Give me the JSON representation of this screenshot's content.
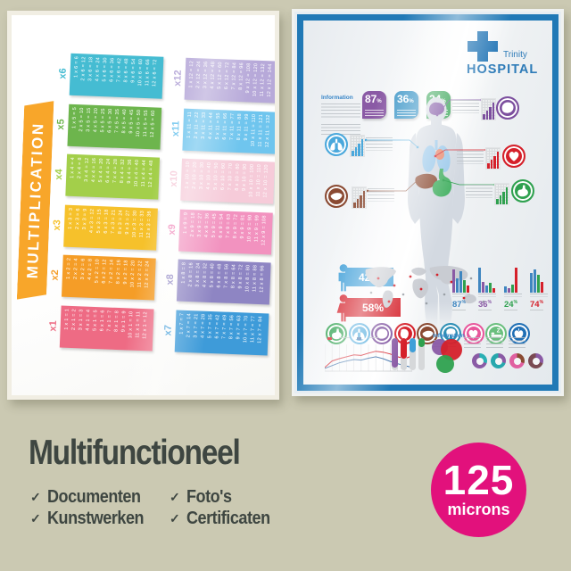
{
  "page": {
    "background_color": "#cbc9b2"
  },
  "product_text": {
    "title": "Multifunctioneel",
    "check_glyph": "✓",
    "features_col1": [
      {
        "label": "Documenten"
      },
      {
        "label": "Kunstwerken"
      }
    ],
    "features_col2": [
      {
        "label": "Foto's"
      },
      {
        "label": "Certificaten"
      }
    ],
    "text_color": "#3e4641"
  },
  "thickness_badge": {
    "value": "125",
    "unit": "microns",
    "color": "#e2117c"
  },
  "multiplication_poster": {
    "title": "MULTIPLICATION",
    "banner_color": "#f8a62a",
    "columns": [
      [
        {
          "label": "x6",
          "color": "#45bcd2",
          "facts": [
            "1 x 6 = 6",
            "2 x 6 = 12",
            "3 x 6 = 18",
            "4 x 6 = 24",
            "5 x 6 = 30",
            "6 x 6 = 36",
            "7 x 6 = 42",
            "8 x 6 = 48",
            "9 x 6 = 54",
            "10 x 6 = 60",
            "11 x 6 = 66",
            "12 x 6 = 72"
          ]
        },
        {
          "label": "x5",
          "color": "#6db54d",
          "facts": [
            "1 x 5 = 5",
            "2 x 5 = 10",
            "3 x 5 = 15",
            "4 x 5 = 20",
            "5 x 5 = 25",
            "6 x 5 = 30",
            "7 x 5 = 35",
            "8 x 5 = 40",
            "9 x 5 = 45",
            "10 x 5 = 50",
            "11 x 5 = 55",
            "12 x 5 = 60"
          ]
        },
        {
          "label": "x4",
          "color": "#a3cf4a",
          "facts": [
            "1 x 4 = 4",
            "2 x 4 = 8",
            "3 x 4 = 12",
            "4 x 4 = 16",
            "5 x 4 = 20",
            "6 x 4 = 24",
            "7 x 4 = 28",
            "8 x 4 = 32",
            "9 x 4 = 36",
            "10 x 4 = 40",
            "11 x 4 = 44",
            "12 x 4 = 48"
          ]
        },
        {
          "label": "x3",
          "color": "#f6c12b",
          "facts": [
            "1 x 3 = 3",
            "2 x 3 = 6",
            "3 x 3 = 9",
            "4 x 3 = 12",
            "5 x 3 = 15",
            "6 x 3 = 18",
            "7 x 3 = 21",
            "8 x 3 = 24",
            "9 x 3 = 27",
            "10 x 3 = 30",
            "11 x 3 = 33",
            "12 x 3 = 36"
          ]
        },
        {
          "label": "x2",
          "color": "#f59d27",
          "facts": [
            "1 x 2 = 2",
            "2 x 2 = 4",
            "3 x 2 = 6",
            "4 x 2 = 8",
            "5 x 2 = 10",
            "6 x 2 = 12",
            "7 x 2 = 14",
            "8 x 2 = 16",
            "9 x 2 = 18",
            "10 x 2 = 20",
            "11 x 2 = 22",
            "12 x 2 = 24"
          ]
        },
        {
          "label": "x1",
          "color": "#ee6b84",
          "facts": [
            "1 x 1 = 1",
            "2 x 1 = 2",
            "3 x 1 = 3",
            "4 x 1 = 4",
            "5 x 1 = 5",
            "6 x 1 = 6",
            "7 x 1 = 7",
            "8 x 1 = 8",
            "9 x 1 = 9",
            "10 x 1 = 10",
            "11 x 1 = 11",
            "12 x 1 = 12"
          ]
        }
      ],
      [
        {
          "label": "x12",
          "color": "#b7a9d9",
          "facts": [
            "1 x 12 = 12",
            "2 x 12 = 24",
            "3 x 12 = 36",
            "4 x 12 = 48",
            "5 x 12 = 60",
            "6 x 12 = 72",
            "7 x 12 = 84",
            "8 x 12 = 96",
            "9 x 12 = 108",
            "10 x 12 = 120",
            "11 x 12 = 132",
            "12 x 12 = 144"
          ]
        },
        {
          "label": "x11",
          "color": "#6fc5ee",
          "facts": [
            "1 x 11 = 11",
            "2 x 11 = 22",
            "3 x 11 = 33",
            "4 x 11 = 44",
            "5 x 11 = 55",
            "6 x 11 = 66",
            "7 x 11 = 77",
            "8 x 11 = 88",
            "9 x 11 = 99",
            "10 x 11 = 110",
            "11 x 11 = 121",
            "12 x 11 = 132"
          ]
        },
        {
          "label": "x10",
          "color": "#f6cbd9",
          "facts": [
            "1 x 10 = 10",
            "2 x 10 = 20",
            "3 x 10 = 30",
            "4 x 10 = 40",
            "5 x 10 = 50",
            "6 x 10 = 60",
            "7 x 10 = 70",
            "8 x 10 = 80",
            "9 x 10 = 90",
            "10 x 10 = 100",
            "11 x 10 = 110",
            "12 x 10 = 120"
          ]
        },
        {
          "label": "x9",
          "color": "#f292bf",
          "facts": [
            "1 x 9 = 9",
            "2 x 9 = 18",
            "3 x 9 = 27",
            "4 x 9 = 36",
            "5 x 9 = 45",
            "6 x 9 = 54",
            "7 x 9 = 63",
            "8 x 9 = 72",
            "9 x 9 = 81",
            "10 x 9 = 90",
            "11 x 9 = 99",
            "12 x 9 = 108"
          ]
        },
        {
          "label": "x8",
          "color": "#8e85c3",
          "facts": [
            "1 x 8 = 8",
            "2 x 8 = 16",
            "3 x 8 = 24",
            "4 x 8 = 32",
            "5 x 8 = 40",
            "6 x 8 = 48",
            "7 x 8 = 56",
            "8 x 8 = 64",
            "9 x 8 = 72",
            "10 x 8 = 80",
            "11 x 8 = 88",
            "12 x 8 = 96"
          ]
        },
        {
          "label": "x7",
          "color": "#3e9bd9",
          "facts": [
            "1 x 7 = 7",
            "2 x 7 = 14",
            "3 x 7 = 21",
            "4 x 7 = 28",
            "5 x 7 = 35",
            "6 x 7 = 42",
            "7 x 7 = 49",
            "8 x 7 = 56",
            "9 x 7 = 63",
            "10 x 7 = 70",
            "11 x 7 = 77",
            "12 x 7 = 84"
          ]
        }
      ]
    ]
  },
  "hospital_poster": {
    "frame_color": "#2079b6",
    "logo": {
      "hospital_name": "Trinity",
      "hospital_word": "HOSPITAL",
      "cross_color": "#2a7ab8"
    },
    "information_label": "Information",
    "bottom_information_label": "Information",
    "stat_badges": [
      {
        "value": "87",
        "unit": "%",
        "color": "#8a5aa5"
      },
      {
        "value": "36",
        "unit": "%",
        "color": "#3e97c8"
      },
      {
        "value": "24",
        "unit": "%",
        "color": "#2fa14f"
      }
    ],
    "gender_split": {
      "male_value": "42%",
      "male_color": "#45a2da",
      "female_value": "58%",
      "female_color": "#d5202a"
    },
    "region_stats": [
      {
        "value": "87",
        "unit": "%",
        "label_color": "#3f86c0",
        "bars": [
          [
            "#8a5aa5",
            26
          ],
          [
            "#3f86c0",
            16
          ],
          [
            "#3f86c0",
            24
          ],
          [
            "#2fa14f",
            14
          ],
          [
            "#d5202a",
            8
          ]
        ]
      },
      {
        "value": "36",
        "unit": "%",
        "label_color": "#8a5aa5",
        "bars": [
          [
            "#3f86c0",
            28
          ],
          [
            "#8a5aa5",
            12
          ],
          [
            "#3f86c0",
            8
          ],
          [
            "#2fa14f",
            11
          ],
          [
            "#d5202a",
            5
          ]
        ]
      },
      {
        "value": "24",
        "unit": "%",
        "label_color": "#2fa14f",
        "bars": [
          [
            "#3f86c0",
            7
          ],
          [
            "#8a5aa5",
            5
          ],
          [
            "#2fa14f",
            9
          ],
          [
            "#d5202a",
            28
          ]
        ]
      },
      {
        "value": "74",
        "unit": "%",
        "label_color": "#d5202a",
        "bars": [
          [
            "#3f86c0",
            22
          ],
          [
            "#3f86c0",
            26
          ],
          [
            "#2fa14f",
            20
          ],
          [
            "#d5202a",
            12
          ]
        ]
      }
    ],
    "body": {
      "silhouette_color": "#d3d9e1",
      "brain_color": "#7b4ea0",
      "lungs_color": "#9ac8ea",
      "heart_color": "#e8896f",
      "liver_color": "#8a4a32",
      "stomach_color": "#46b164"
    },
    "callouts": [
      {
        "organ": "brain",
        "color": "#7c4f9e",
        "side": "right"
      },
      {
        "organ": "lungs",
        "color": "#4aa8dc",
        "side": "left"
      },
      {
        "organ": "heart",
        "color": "#d5202a",
        "side": "right"
      },
      {
        "organ": "liver",
        "color": "#8a4a32",
        "side": "left"
      },
      {
        "organ": "stomach",
        "color": "#2fa14f",
        "side": "right"
      }
    ],
    "organ_icons": [
      {
        "organ": "stomach",
        "color": "#2fa14f"
      },
      {
        "organ": "lungs",
        "color": "#4aa8dc"
      },
      {
        "organ": "brain",
        "color": "#7c4f9e"
      },
      {
        "organ": "heart-organ",
        "color": "#d5202a"
      },
      {
        "organ": "liver",
        "color": "#8a4a32"
      },
      {
        "organ": "tooth",
        "color": "#2e8fb5"
      },
      {
        "organ": "heart",
        "color": "#e8569b"
      },
      {
        "organ": "sleep",
        "color": "#6abf7e"
      },
      {
        "organ": "apple",
        "color": "#1f6fb5"
      }
    ],
    "line_chart": {
      "red_color": "#d5202a",
      "blue_color": "#3a6ea8",
      "red": [
        0.12,
        0.4,
        0.5,
        0.58,
        0.66,
        0.64,
        0.74,
        0.82,
        0.78,
        0.7,
        0.58,
        0.5,
        0.62
      ],
      "blue": [
        0.08,
        0.2,
        0.32,
        0.4,
        0.46,
        0.44,
        0.52,
        0.58,
        0.5,
        0.38,
        0.28,
        0.2,
        0.12
      ]
    },
    "track_bars": [
      [
        "#8a5aa5",
        0.92
      ],
      [
        "#d5202a",
        0.65
      ],
      [
        "#3f9fd8",
        0.45
      ],
      [
        "#2fa14f",
        0.28
      ]
    ],
    "bubbles": [
      [
        "#8a5aa5",
        9
      ],
      [
        "#d5202a",
        12
      ],
      [
        "#2fa14f",
        10
      ]
    ],
    "donuts": [
      [
        "#8a5aa5",
        "#2ab0b4"
      ],
      [
        "#27a8ad",
        "#8a5aa5"
      ],
      [
        "#e060a0",
        "#8a4a32"
      ],
      [
        "#7a4a52",
        "#8a5aa5"
      ]
    ]
  }
}
